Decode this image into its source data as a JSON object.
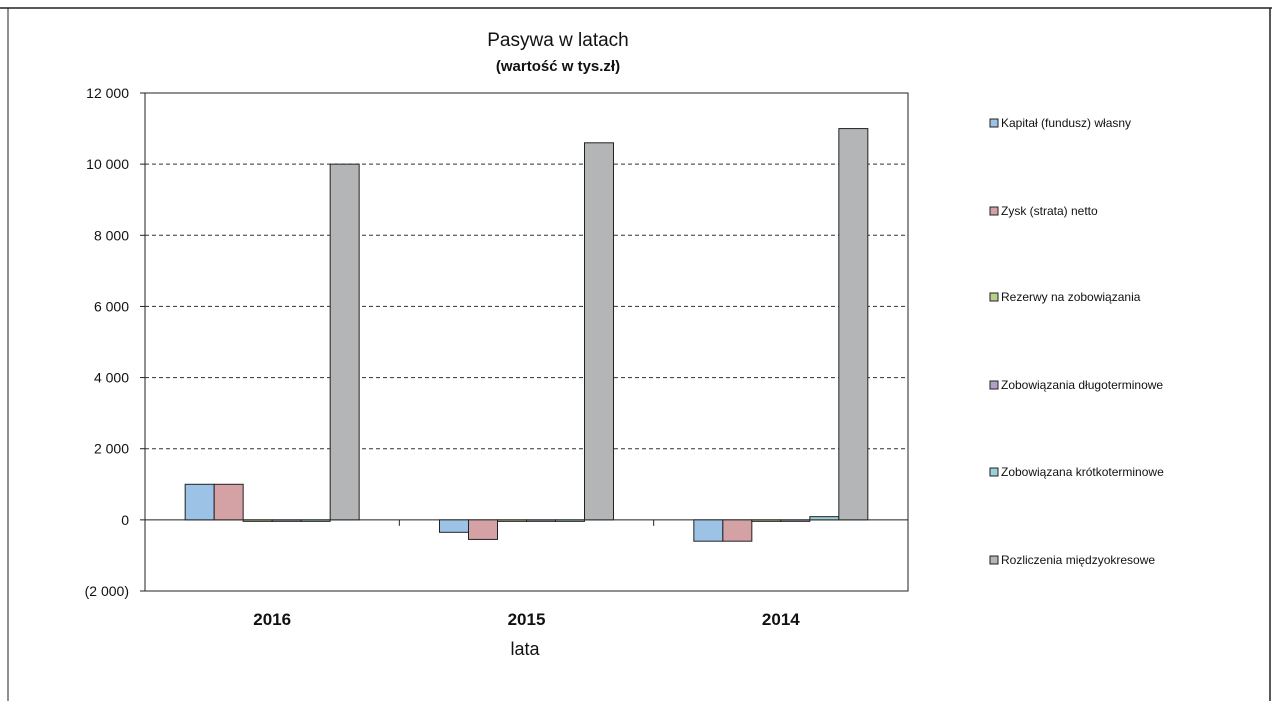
{
  "chart_data": {
    "type": "bar",
    "title": "Pasywa w latach",
    "subtitle": "(wartość w tys.zł)",
    "xlabel": "lata",
    "ylabel": "",
    "categories": [
      "2016",
      "2015",
      "2014"
    ],
    "ylim": [
      -2000,
      12000
    ],
    "yticks": [
      12000,
      10000,
      8000,
      6000,
      4000,
      2000,
      0,
      -2000
    ],
    "ytick_labels": [
      "12 000",
      "10 000",
      "8 000",
      "6 000",
      "4 000",
      "2 000",
      "0",
      "(2 000)"
    ],
    "grid": true,
    "legend_position": "right",
    "series": [
      {
        "name": "Kapitał (fundusz) własny",
        "values": [
          1000,
          -350,
          -600
        ],
        "color": "#9cc3e5"
      },
      {
        "name": "Zysk (strata) netto",
        "values": [
          1000,
          -550,
          -600
        ],
        "color": "#d4a1a4"
      },
      {
        "name": "Rezerwy na zobowiązania",
        "values": [
          0,
          0,
          0
        ],
        "color": "#b8d08a"
      },
      {
        "name": "Zobowiązania długoterminowe",
        "values": [
          0,
          0,
          0
        ],
        "color": "#b1a0c6"
      },
      {
        "name": "Zobowiązana krótkoterminowe",
        "values": [
          0,
          0,
          90
        ],
        "color": "#9ad0d8"
      },
      {
        "name": "Rozliczenia międzyokresowe",
        "values": [
          10000,
          10600,
          11000
        ],
        "color": "#b3b5b6"
      }
    ]
  }
}
